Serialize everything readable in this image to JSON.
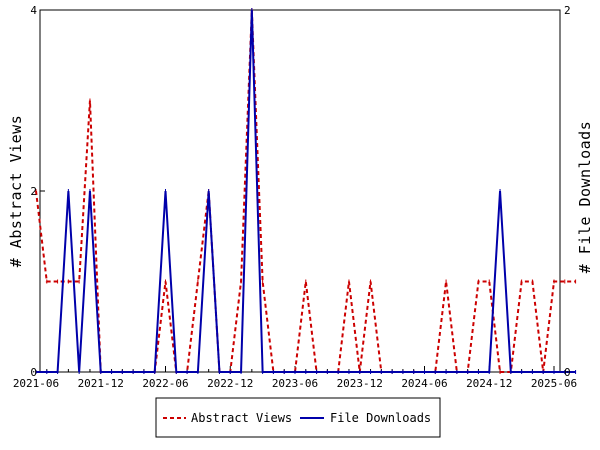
{
  "chart_data": {
    "type": "line",
    "x_ticks": [
      "2021-06",
      "2021-12",
      "2022-06",
      "2022-12",
      "2023-06",
      "2023-12",
      "2024-06",
      "2024-12",
      "2025-06"
    ],
    "y_left": {
      "label": "# Abstract Views",
      "lim": [
        0,
        4
      ],
      "ticks": [
        "0",
        "2",
        "4"
      ]
    },
    "y_right": {
      "label": "# File Downloads",
      "lim": [
        0,
        2
      ],
      "ticks": [
        "0",
        "2"
      ]
    },
    "grid": false,
    "legend_position": "bottom",
    "series": [
      {
        "name": "Abstract Views",
        "axis": "left",
        "color": "#cc0000",
        "style": "dashed",
        "x": [
          "2021-06",
          "2021-07",
          "2021-08",
          "2021-09",
          "2021-10",
          "2021-11",
          "2021-12",
          "2022-01",
          "2022-02",
          "2022-03",
          "2022-04",
          "2022-05",
          "2022-06",
          "2022-07",
          "2022-08",
          "2022-09",
          "2022-10",
          "2022-11",
          "2022-12",
          "2023-01",
          "2023-02",
          "2023-03",
          "2023-04",
          "2023-05",
          "2023-06",
          "2023-07",
          "2023-08",
          "2023-09",
          "2023-10",
          "2023-11",
          "2023-12",
          "2024-01",
          "2024-02",
          "2024-03",
          "2024-04",
          "2024-05",
          "2024-06",
          "2024-07",
          "2024-08",
          "2024-09",
          "2024-10",
          "2024-11",
          "2024-12",
          "2025-01",
          "2025-02",
          "2025-03",
          "2025-04",
          "2025-05",
          "2025-06",
          "2025-07",
          "2025-08"
        ],
        "values": [
          2,
          1,
          1,
          1,
          1,
          3,
          0,
          0,
          0,
          0,
          0,
          0,
          1,
          0,
          0,
          1,
          2,
          0,
          0,
          1,
          4,
          1,
          0,
          0,
          0,
          1,
          0,
          0,
          0,
          1,
          0,
          1,
          0,
          0,
          0,
          0,
          0,
          0,
          1,
          0,
          0,
          1,
          1,
          0,
          0,
          1,
          1,
          0,
          1,
          1,
          1
        ]
      },
      {
        "name": "File Downloads",
        "axis": "right",
        "color": "#0000aa",
        "style": "solid",
        "x": [
          "2021-06",
          "2021-07",
          "2021-08",
          "2021-09",
          "2021-10",
          "2021-11",
          "2021-12",
          "2022-01",
          "2022-02",
          "2022-03",
          "2022-04",
          "2022-05",
          "2022-06",
          "2022-07",
          "2022-08",
          "2022-09",
          "2022-10",
          "2022-11",
          "2022-12",
          "2023-01",
          "2023-02",
          "2023-03",
          "2023-04",
          "2023-05",
          "2023-06",
          "2023-07",
          "2023-08",
          "2023-09",
          "2023-10",
          "2023-11",
          "2023-12",
          "2024-01",
          "2024-02",
          "2024-03",
          "2024-04",
          "2024-05",
          "2024-06",
          "2024-07",
          "2024-08",
          "2024-09",
          "2024-10",
          "2024-11",
          "2024-12",
          "2025-01",
          "2025-02",
          "2025-03",
          "2025-04",
          "2025-05",
          "2025-06",
          "2025-07",
          "2025-08"
        ],
        "values": [
          0,
          0,
          0,
          1,
          0,
          1,
          0,
          0,
          0,
          0,
          0,
          0,
          1,
          0,
          0,
          0,
          1,
          0,
          0,
          0,
          2,
          0,
          0,
          0,
          0,
          0,
          0,
          0,
          0,
          0,
          0,
          0,
          0,
          0,
          0,
          0,
          0,
          0,
          0,
          0,
          0,
          0,
          0,
          1,
          0,
          0,
          0,
          0,
          0,
          0,
          0
        ]
      }
    ]
  }
}
